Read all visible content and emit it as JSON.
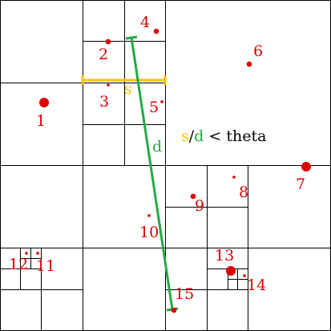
{
  "colors": {
    "grid": "#000000",
    "point": "#dd0000",
    "label": "#dd0000",
    "s_segment": "#ffc000",
    "d_segment": "#22aa44",
    "theta_text": "#000000",
    "background": "#ffffff"
  },
  "points": [
    {
      "id": "p1",
      "label": "1",
      "size": "large"
    },
    {
      "id": "p2",
      "label": "2",
      "size": "medium"
    },
    {
      "id": "p3",
      "label": "3",
      "size": "small"
    },
    {
      "id": "p4",
      "label": "4",
      "size": "medium"
    },
    {
      "id": "p5",
      "label": "5",
      "size": "small"
    },
    {
      "id": "p6",
      "label": "6",
      "size": "medium"
    },
    {
      "id": "p7",
      "label": "7",
      "size": "large"
    },
    {
      "id": "p8",
      "label": "8",
      "size": "small"
    },
    {
      "id": "p9",
      "label": "9",
      "size": "medium"
    },
    {
      "id": "p10",
      "label": "10",
      "size": "small"
    },
    {
      "id": "p11",
      "label": "11",
      "size": "small"
    },
    {
      "id": "p12",
      "label": "12",
      "size": "small"
    },
    {
      "id": "p13",
      "label": "13",
      "size": "large"
    },
    {
      "id": "p14",
      "label": "14",
      "size": "small"
    },
    {
      "id": "p15",
      "label": "15",
      "size": "medium"
    }
  ],
  "s_label": "s",
  "d_label": "d",
  "criterion": {
    "s": "s",
    "slash": "/",
    "d": "d",
    "rest": " < theta"
  }
}
